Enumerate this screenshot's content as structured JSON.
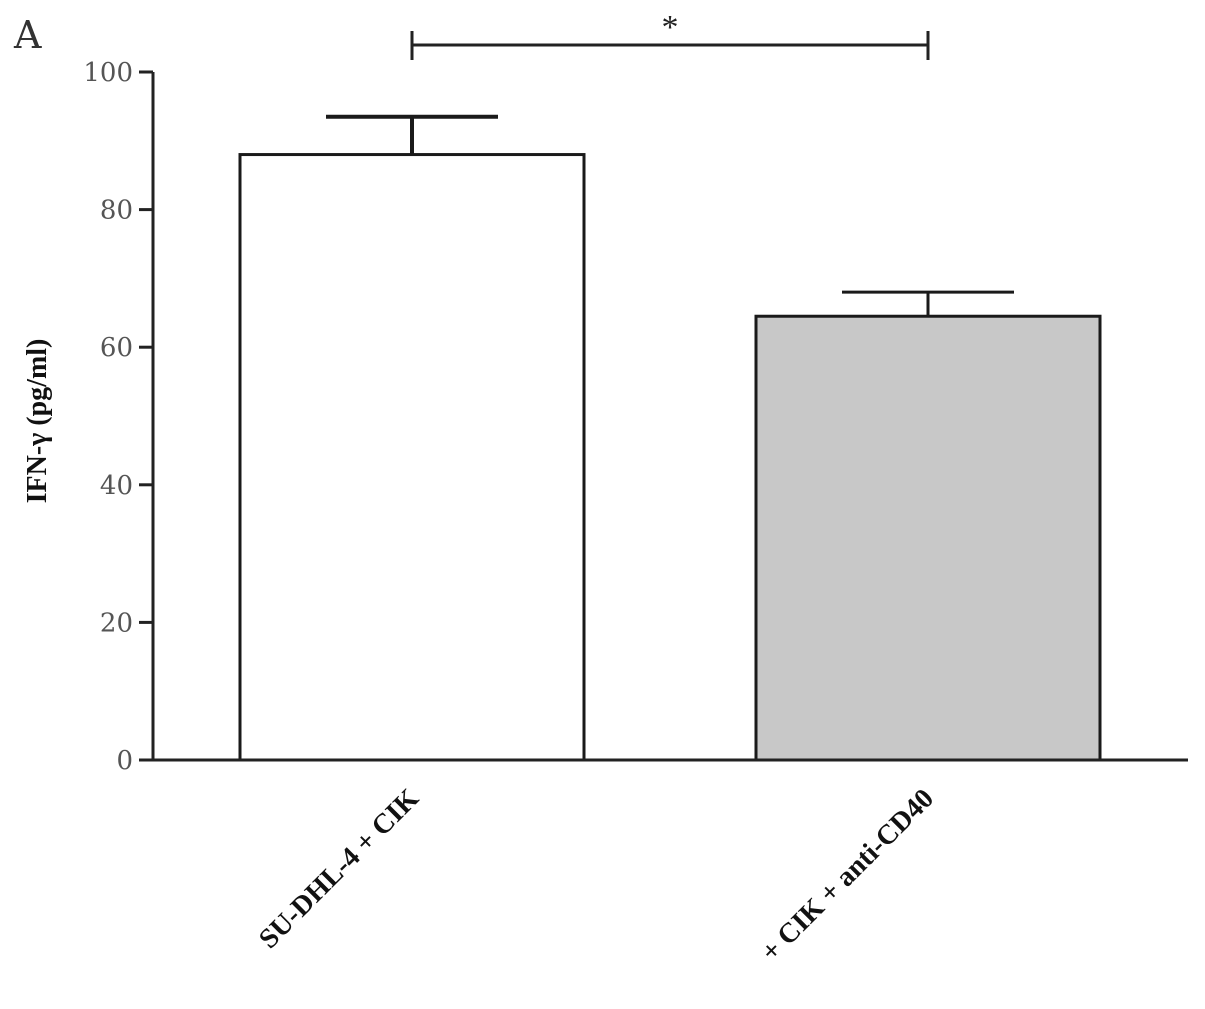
{
  "panel_label": "A",
  "chart_data": {
    "type": "bar",
    "title": "",
    "xlabel": "",
    "ylabel": "IFN-γ (pg/ml)",
    "categories": [
      "SU-DHL-4 + CIK",
      "+ CIK + anti-CD40"
    ],
    "values": [
      88,
      64.5
    ],
    "error_upper": [
      93.5,
      68
    ],
    "bar_colors": [
      "#ffffff",
      "#c8c8c8"
    ],
    "ylim": [
      0,
      100
    ],
    "yticks": [
      0,
      20,
      40,
      60,
      80,
      100
    ],
    "grid": false,
    "legend": "none",
    "significance": {
      "between": [
        0,
        1
      ],
      "label": "*"
    }
  }
}
